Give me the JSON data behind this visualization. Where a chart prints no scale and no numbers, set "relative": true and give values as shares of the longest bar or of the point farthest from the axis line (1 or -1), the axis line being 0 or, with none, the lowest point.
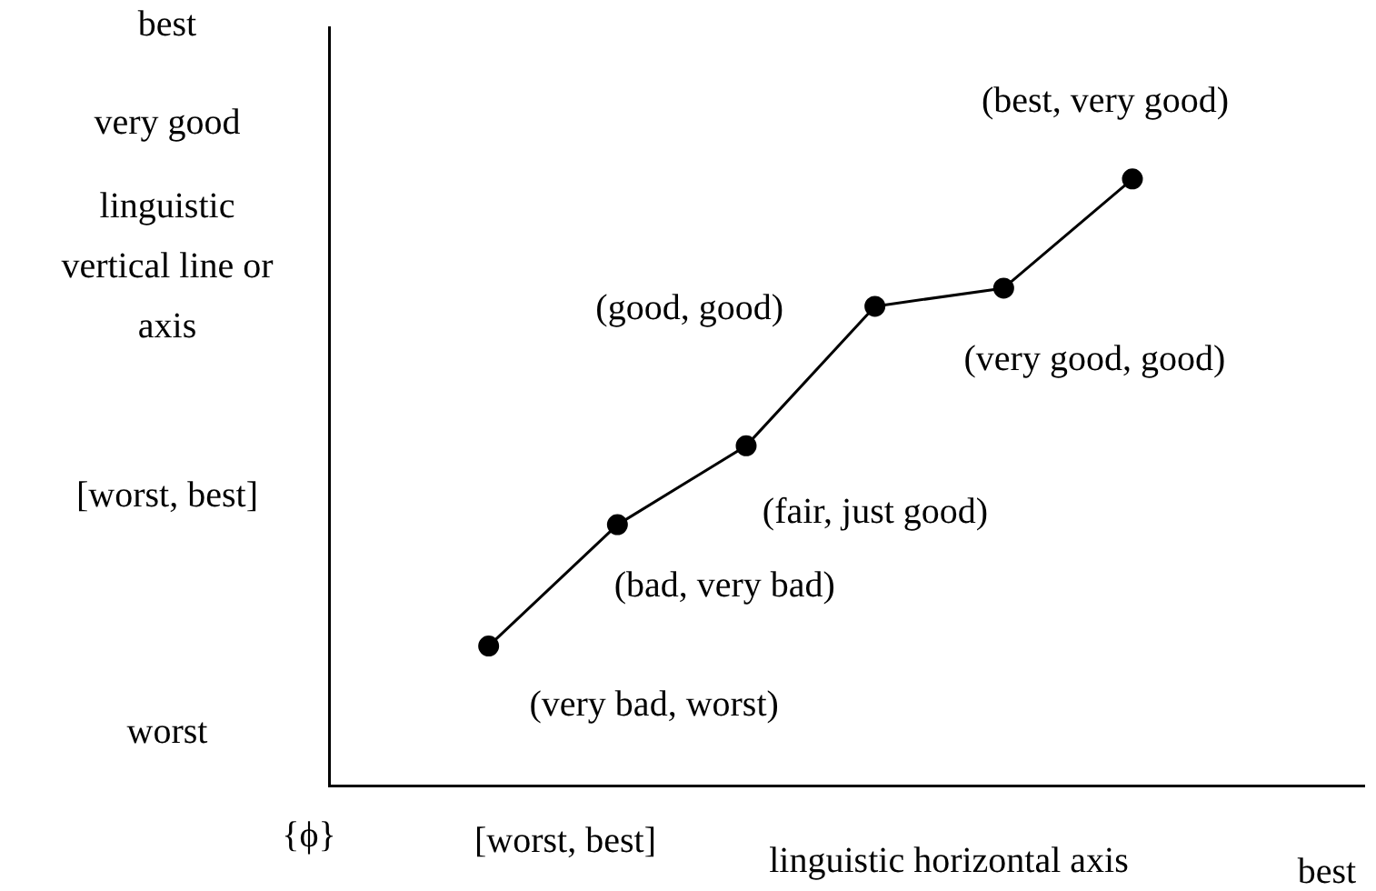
{
  "chart_data": {
    "type": "line",
    "relative": true,
    "marker": "circle",
    "color": "#000000",
    "xlabel": "linguistic horizontal axis",
    "ylabel": "linguistic vertical line or axis",
    "categories": [
      null,
      null,
      null,
      null,
      null,
      null
    ],
    "values": [
      0.23,
      0.43,
      0.56,
      0.79,
      0.82,
      1
    ],
    "annotations": [
      "best",
      "very good",
      "[worst, best]",
      "worst",
      "{ϕ}",
      "[worst, best]",
      "best",
      "(very bad, worst)",
      "(bad, very bad)",
      "(fair, just good)",
      "(good, good)",
      "(very good, good)",
      "(best, very good)"
    ]
  }
}
